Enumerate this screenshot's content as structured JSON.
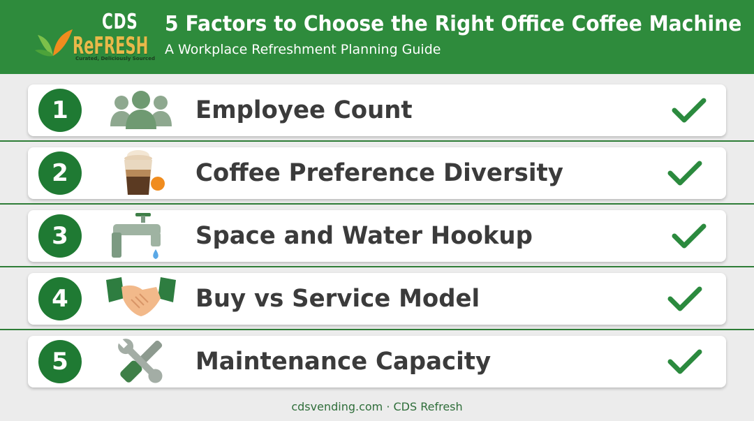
{
  "header": {
    "logo": {
      "brand_top": "CDS",
      "brand_bottom": "ReFRESH",
      "tagline": "Curated, Deliciously Sourced"
    },
    "title": "5 Factors to Choose the Right Office Coffee Machine",
    "subtitle": "A Workplace Refreshment Planning Guide"
  },
  "colors": {
    "brand_green": "#2e8b3c",
    "number_green": "#1f7a33",
    "check_green": "#2b8a3e",
    "logo_gold": "#e8b94a"
  },
  "factors": [
    {
      "number": "1",
      "label": "Employee Count",
      "icon": "people-group-icon"
    },
    {
      "number": "2",
      "label": "Coffee Preference Diversity",
      "icon": "coffee-cup-icon"
    },
    {
      "number": "3",
      "label": "Space and Water Hookup",
      "icon": "water-faucet-icon"
    },
    {
      "number": "4",
      "label": "Buy vs Service Model",
      "icon": "handshake-icon"
    },
    {
      "number": "5",
      "label": "Maintenance Capacity",
      "icon": "wrench-screwdriver-icon"
    }
  ],
  "footer": {
    "text": "cdsvending.com · CDS Refresh"
  }
}
